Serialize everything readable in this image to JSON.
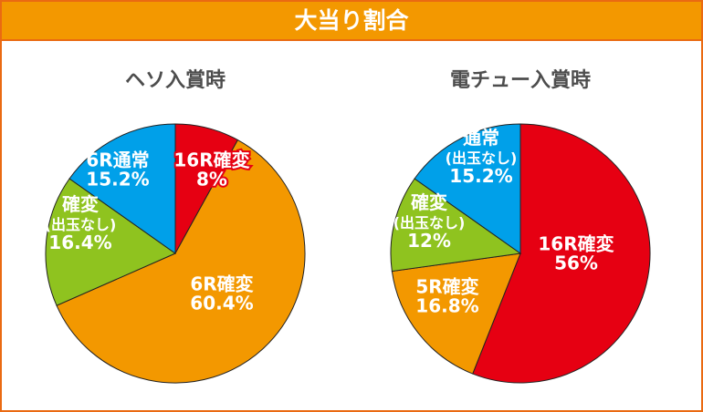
{
  "title": "大当り割合",
  "colors": {
    "red": "#e60012",
    "orange": "#f39800",
    "green": "#8fc31f",
    "blue": "#00a0e9",
    "frame": "#ea6a12"
  },
  "chart_data": [
    {
      "type": "pie",
      "title": "ヘソ入賞時",
      "start": "top-clockwise",
      "slices": [
        {
          "label": "16R確変",
          "sub": "",
          "value": 8,
          "text": "8%",
          "color": "#e60012"
        },
        {
          "label": "6R確変",
          "sub": "",
          "value": 60.4,
          "text": "60.4%",
          "color": "#f39800"
        },
        {
          "label": "確変",
          "sub": "(出玉なし)",
          "value": 16.4,
          "text": "16.4%",
          "color": "#8fc31f"
        },
        {
          "label": "6R通常",
          "sub": "",
          "value": 15.2,
          "text": "15.2%",
          "color": "#00a0e9"
        }
      ]
    },
    {
      "type": "pie",
      "title": "電チュー入賞時",
      "start": "top-clockwise",
      "slices": [
        {
          "label": "16R確変",
          "sub": "",
          "value": 56,
          "text": "56%",
          "color": "#e60012"
        },
        {
          "label": "5R確変",
          "sub": "",
          "value": 16.8,
          "text": "16.8%",
          "color": "#f39800"
        },
        {
          "label": "確変",
          "sub": "(出玉なし)",
          "value": 12,
          "text": "12%",
          "color": "#8fc31f"
        },
        {
          "label": "通常",
          "sub": "(出玉なし)",
          "value": 15.2,
          "text": "15.2%",
          "color": "#00a0e9"
        }
      ]
    }
  ]
}
